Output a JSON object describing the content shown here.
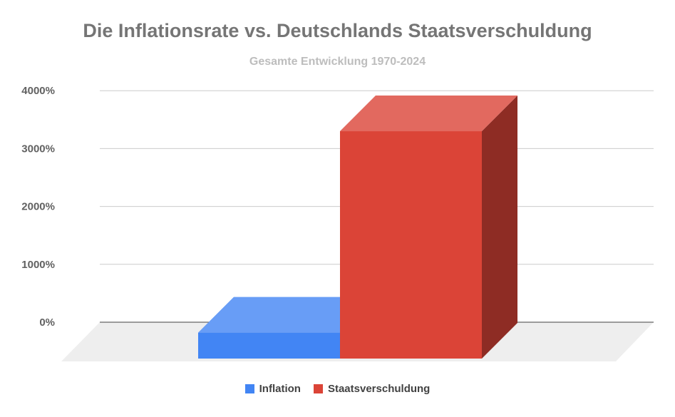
{
  "chart_data": {
    "type": "bar",
    "title": "Die Inflationsrate vs. Deutschlands Staatsverschuldung",
    "subtitle": "Gesamte Entwicklung 1970-2024",
    "categories": [
      ""
    ],
    "series": [
      {
        "name": "Inflation",
        "values": [
          -180
        ],
        "color": "#4285f4"
      },
      {
        "name": "Staatsverschuldung",
        "values": [
          3300
        ],
        "color": "#db4437"
      }
    ],
    "yticks": [
      "0%",
      "1000%",
      "2000%",
      "3000%",
      "4000%"
    ],
    "ylim": [
      0,
      4000
    ],
    "grid": true,
    "legend": "bottom",
    "style": "3d-bar"
  }
}
